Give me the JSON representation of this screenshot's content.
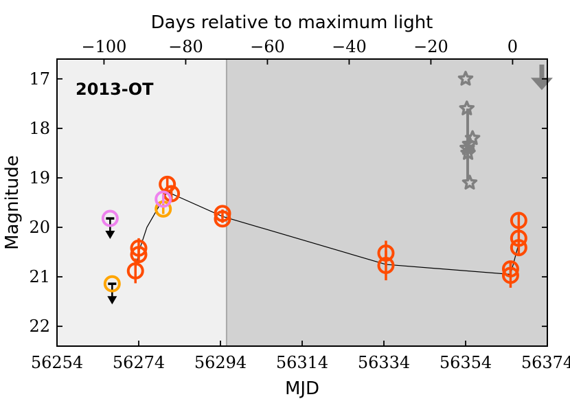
{
  "chart_data": {
    "type": "scatter",
    "label": "2013-OT",
    "xlabel": "MJD",
    "ylabel": "Magnitude",
    "top_xlabel": "Days relative to maximum light",
    "xlim": [
      56254,
      56374
    ],
    "ylim": [
      22.4,
      16.6
    ],
    "x_ticks": [
      "56254",
      "56274",
      "56294",
      "56314",
      "56334",
      "56354",
      "56374"
    ],
    "y_ticks": [
      "17",
      "18",
      "19",
      "20",
      "21",
      "22"
    ],
    "top_ticks": [
      "−100",
      "−80",
      "−60",
      "−40",
      "−20",
      "0"
    ],
    "shaded_regions": [
      {
        "x": [
          56254,
          56295.5
        ],
        "color": "#f0f0f0"
      },
      {
        "x": [
          56295.5,
          56374
        ],
        "color": "#d2d2d2"
      }
    ],
    "region_boundary": 56295.5,
    "colors": {
      "red_band": "#ff4b00",
      "orange_band": "#ffa500",
      "violet_band": "#ee82ee",
      "gray_star": "#808080",
      "limit_arrow": "#000000",
      "connecting_line": "#000000"
    },
    "series": [
      {
        "color": "red_band",
        "marker": "circle",
        "points": [
          {
            "x": 56273.2,
            "y": 20.88,
            "err": 0.25
          },
          {
            "x": 56274.0,
            "y": 20.42,
            "err": 0.2
          },
          {
            "x": 56274.0,
            "y": 20.55,
            "err": 0.15
          },
          {
            "x": 56281.0,
            "y": 19.13,
            "err": 0.12
          },
          {
            "x": 56282.0,
            "y": 19.32,
            "err": 0.15
          },
          {
            "x": 56294.5,
            "y": 19.72,
            "err": 0.08
          },
          {
            "x": 56294.5,
            "y": 19.83,
            "err": 0.08
          },
          {
            "x": 56334.5,
            "y": 20.52,
            "err": 0.25
          },
          {
            "x": 56334.5,
            "y": 20.77,
            "err": 0.3
          },
          {
            "x": 56365.0,
            "y": 20.84,
            "err": 0.15
          },
          {
            "x": 56365.0,
            "y": 20.97,
            "err": 0.25
          },
          {
            "x": 56367.0,
            "y": 19.86,
            "err": 0.12
          },
          {
            "x": 56367.0,
            "y": 20.22,
            "err": 0.2
          },
          {
            "x": 56367.0,
            "y": 20.41,
            "err": 0.15
          }
        ]
      },
      {
        "color": "orange_band",
        "marker": "circle",
        "points": [
          {
            "x": 56280.0,
            "y": 19.63,
            "err": 0.1
          }
        ]
      },
      {
        "color": "violet_band",
        "marker": "circle",
        "points": [
          {
            "x": 56280.0,
            "y": 19.43,
            "err": 0.1
          }
        ]
      },
      {
        "color": "gray_star",
        "marker": "star",
        "connected_x": 56354.5,
        "connected_y": [
          17.6,
          19.05
        ],
        "points": [
          {
            "x": 56354.0,
            "y": 17.0
          },
          {
            "x": 56354.3,
            "y": 17.6
          },
          {
            "x": 56355.7,
            "y": 18.2
          },
          {
            "x": 56355.0,
            "y": 18.32
          },
          {
            "x": 56354.4,
            "y": 18.4
          },
          {
            "x": 56354.6,
            "y": 18.5
          },
          {
            "x": 56355.0,
            "y": 19.1
          }
        ]
      }
    ],
    "upper_limits": [
      {
        "x": 56267.0,
        "y": 19.82,
        "color": "violet_band"
      },
      {
        "x": 56267.5,
        "y": 21.14,
        "color": "orange_band"
      }
    ],
    "gray_limit_arrow": {
      "x": 56375.0,
      "y_start": 16.6,
      "y_end": 17.2
    },
    "connecting_line": [
      [
        56273.2,
        20.88
      ],
      [
        56274.0,
        20.5
      ],
      [
        56276.0,
        20.0
      ],
      [
        56281.0,
        19.28
      ],
      [
        56282.0,
        19.32
      ],
      [
        56294.5,
        19.78
      ],
      [
        56334.5,
        20.75
      ],
      [
        56365.0,
        20.95
      ],
      [
        56367.0,
        20.33
      ]
    ]
  }
}
